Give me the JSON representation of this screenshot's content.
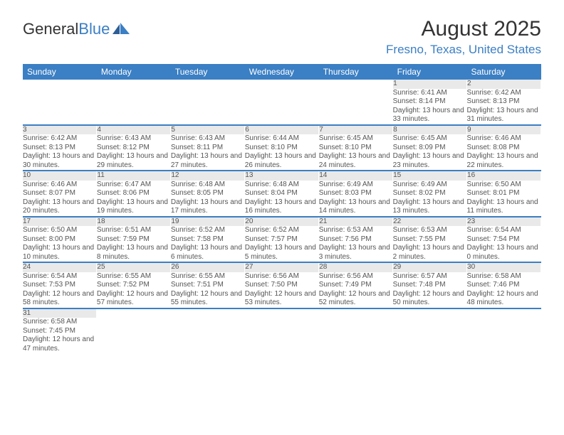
{
  "logo": {
    "text1": "General",
    "text2": "Blue"
  },
  "title": "August 2025",
  "location": "Fresno, Texas, United States",
  "colors": {
    "brand": "#3b7fc4",
    "daynum_bg": "#e9e9e9",
    "text": "#555",
    "bg": "#ffffff"
  },
  "weekdays": [
    "Sunday",
    "Monday",
    "Tuesday",
    "Wednesday",
    "Thursday",
    "Friday",
    "Saturday"
  ],
  "weeks": [
    [
      null,
      null,
      null,
      null,
      null,
      {
        "n": "1",
        "sr": "6:41 AM",
        "ss": "8:14 PM",
        "dl": "13 hours and 33 minutes."
      },
      {
        "n": "2",
        "sr": "6:42 AM",
        "ss": "8:13 PM",
        "dl": "13 hours and 31 minutes."
      }
    ],
    [
      {
        "n": "3",
        "sr": "6:42 AM",
        "ss": "8:13 PM",
        "dl": "13 hours and 30 minutes."
      },
      {
        "n": "4",
        "sr": "6:43 AM",
        "ss": "8:12 PM",
        "dl": "13 hours and 29 minutes."
      },
      {
        "n": "5",
        "sr": "6:43 AM",
        "ss": "8:11 PM",
        "dl": "13 hours and 27 minutes."
      },
      {
        "n": "6",
        "sr": "6:44 AM",
        "ss": "8:10 PM",
        "dl": "13 hours and 26 minutes."
      },
      {
        "n": "7",
        "sr": "6:45 AM",
        "ss": "8:10 PM",
        "dl": "13 hours and 24 minutes."
      },
      {
        "n": "8",
        "sr": "6:45 AM",
        "ss": "8:09 PM",
        "dl": "13 hours and 23 minutes."
      },
      {
        "n": "9",
        "sr": "6:46 AM",
        "ss": "8:08 PM",
        "dl": "13 hours and 22 minutes."
      }
    ],
    [
      {
        "n": "10",
        "sr": "6:46 AM",
        "ss": "8:07 PM",
        "dl": "13 hours and 20 minutes."
      },
      {
        "n": "11",
        "sr": "6:47 AM",
        "ss": "8:06 PM",
        "dl": "13 hours and 19 minutes."
      },
      {
        "n": "12",
        "sr": "6:48 AM",
        "ss": "8:05 PM",
        "dl": "13 hours and 17 minutes."
      },
      {
        "n": "13",
        "sr": "6:48 AM",
        "ss": "8:04 PM",
        "dl": "13 hours and 16 minutes."
      },
      {
        "n": "14",
        "sr": "6:49 AM",
        "ss": "8:03 PM",
        "dl": "13 hours and 14 minutes."
      },
      {
        "n": "15",
        "sr": "6:49 AM",
        "ss": "8:02 PM",
        "dl": "13 hours and 13 minutes."
      },
      {
        "n": "16",
        "sr": "6:50 AM",
        "ss": "8:01 PM",
        "dl": "13 hours and 11 minutes."
      }
    ],
    [
      {
        "n": "17",
        "sr": "6:50 AM",
        "ss": "8:00 PM",
        "dl": "13 hours and 10 minutes."
      },
      {
        "n": "18",
        "sr": "6:51 AM",
        "ss": "7:59 PM",
        "dl": "13 hours and 8 minutes."
      },
      {
        "n": "19",
        "sr": "6:52 AM",
        "ss": "7:58 PM",
        "dl": "13 hours and 6 minutes."
      },
      {
        "n": "20",
        "sr": "6:52 AM",
        "ss": "7:57 PM",
        "dl": "13 hours and 5 minutes."
      },
      {
        "n": "21",
        "sr": "6:53 AM",
        "ss": "7:56 PM",
        "dl": "13 hours and 3 minutes."
      },
      {
        "n": "22",
        "sr": "6:53 AM",
        "ss": "7:55 PM",
        "dl": "13 hours and 2 minutes."
      },
      {
        "n": "23",
        "sr": "6:54 AM",
        "ss": "7:54 PM",
        "dl": "13 hours and 0 minutes."
      }
    ],
    [
      {
        "n": "24",
        "sr": "6:54 AM",
        "ss": "7:53 PM",
        "dl": "12 hours and 58 minutes."
      },
      {
        "n": "25",
        "sr": "6:55 AM",
        "ss": "7:52 PM",
        "dl": "12 hours and 57 minutes."
      },
      {
        "n": "26",
        "sr": "6:55 AM",
        "ss": "7:51 PM",
        "dl": "12 hours and 55 minutes."
      },
      {
        "n": "27",
        "sr": "6:56 AM",
        "ss": "7:50 PM",
        "dl": "12 hours and 53 minutes."
      },
      {
        "n": "28",
        "sr": "6:56 AM",
        "ss": "7:49 PM",
        "dl": "12 hours and 52 minutes."
      },
      {
        "n": "29",
        "sr": "6:57 AM",
        "ss": "7:48 PM",
        "dl": "12 hours and 50 minutes."
      },
      {
        "n": "30",
        "sr": "6:58 AM",
        "ss": "7:46 PM",
        "dl": "12 hours and 48 minutes."
      }
    ],
    [
      {
        "n": "31",
        "sr": "6:58 AM",
        "ss": "7:45 PM",
        "dl": "12 hours and 47 minutes."
      },
      null,
      null,
      null,
      null,
      null,
      null
    ]
  ],
  "labels": {
    "sunrise": "Sunrise:",
    "sunset": "Sunset:",
    "daylight": "Daylight:"
  }
}
